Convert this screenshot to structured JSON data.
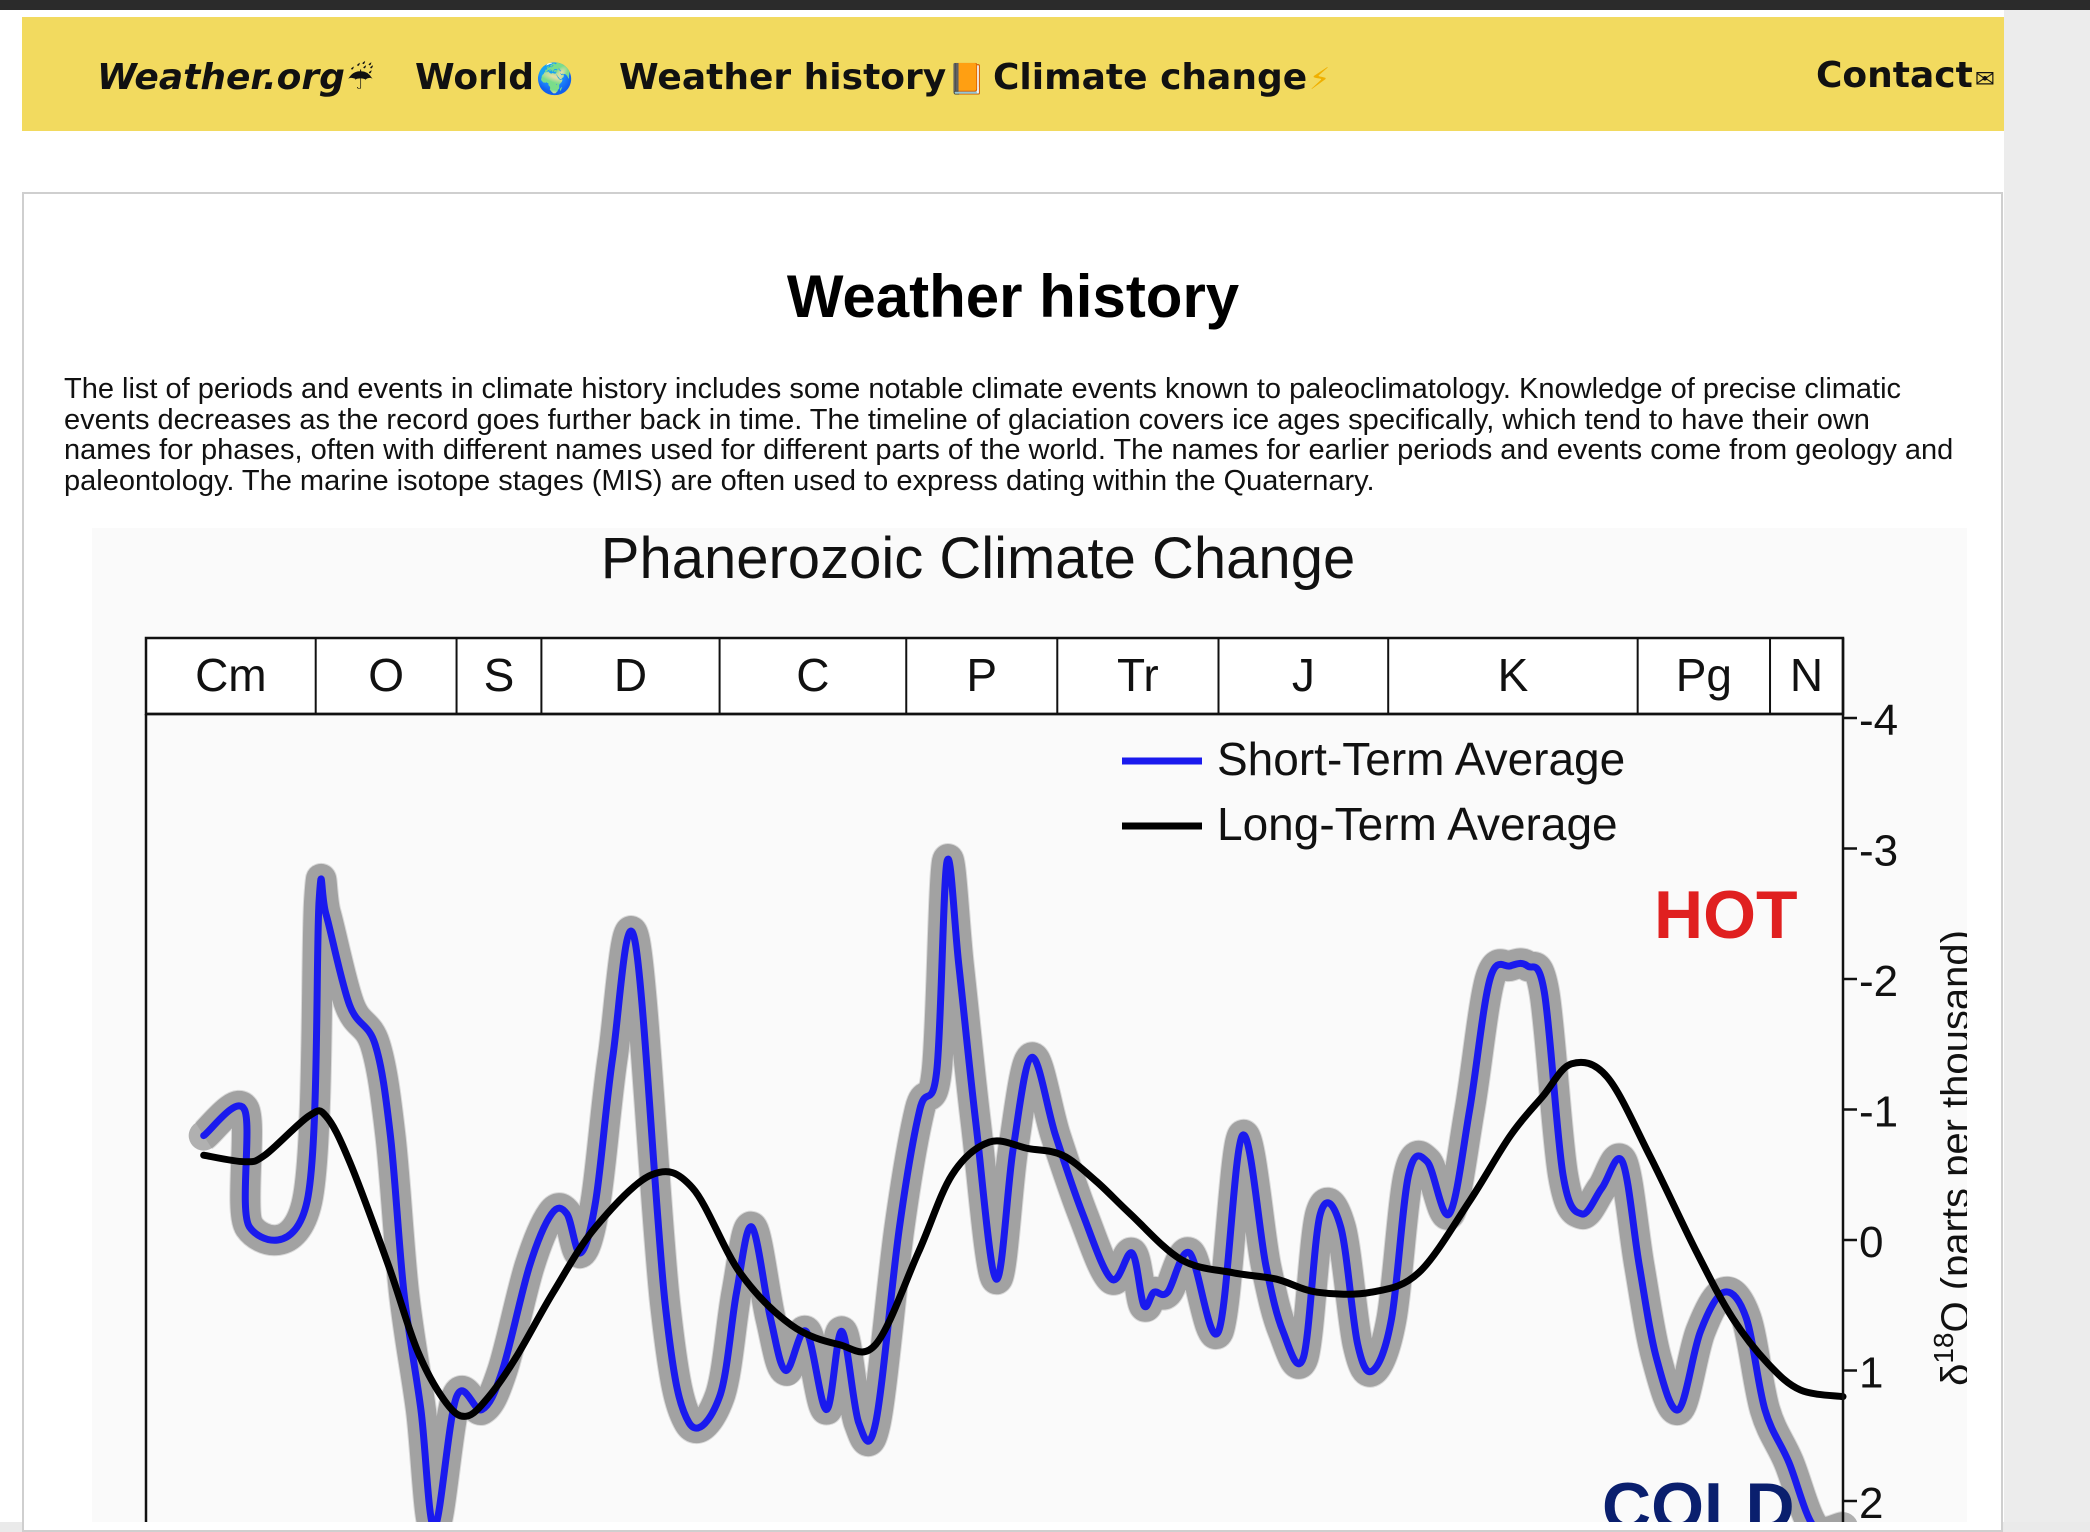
{
  "nav": {
    "brand": "Weather.org",
    "brand_emoji": "☔",
    "world": "World",
    "world_emoji": "🌍",
    "history": "Weather history",
    "history_emoji": "📙",
    "climate": "Climate change",
    "climate_emoji": "⚡",
    "contact": "Contact",
    "contact_emoji": "✉"
  },
  "main": {
    "title": "Weather history",
    "intro": "The list of periods and events in climate history includes some notable climate events known to paleoclimatology. Knowledge of precise climatic events decreases as the record goes further back in time. The timeline of glaciation covers ice ages specifically, which tend to have their own names for phases, often with different names used for different parts of the world. The names for earlier periods and events come from geology and paleontology. The marine isotope stages (MIS) are often used to express dating within the Quaternary."
  },
  "colors": {
    "nav_bg": "#f2da5f",
    "short_term": "#1a1aee",
    "long_term": "#000000",
    "hot": "#e02020",
    "cold": "#0a1f6e",
    "band": "#b0b0b0"
  },
  "chart_data": {
    "type": "line",
    "title": "Phanerozoic Climate Change",
    "ylabel": "δ18O (parts per thousand)",
    "ylabel_main": "δ",
    "ylabel_sup": "18",
    "ylabel_rest": "O (parts per thousand)",
    "ylim": [
      2,
      -4
    ],
    "yticks": [
      "-4",
      "-3",
      "-2",
      "-1",
      "0",
      "1",
      "2"
    ],
    "ytick_values": [
      -4,
      -3,
      -2,
      -1,
      0,
      1,
      2
    ],
    "periods": [
      {
        "label": "Cm",
        "start": 0,
        "end": 10
      },
      {
        "label": "O",
        "start": 10,
        "end": 18.3
      },
      {
        "label": "S",
        "start": 18.3,
        "end": 23.3
      },
      {
        "label": "D",
        "start": 23.3,
        "end": 33.8
      },
      {
        "label": "C",
        "start": 33.8,
        "end": 44.8
      },
      {
        "label": "P",
        "start": 44.8,
        "end": 53.7
      },
      {
        "label": "Tr",
        "start": 53.7,
        "end": 63.2
      },
      {
        "label": "J",
        "start": 63.2,
        "end": 73.2
      },
      {
        "label": "K",
        "start": 73.2,
        "end": 87.9
      },
      {
        "label": "Pg",
        "start": 87.9,
        "end": 95.7
      },
      {
        "label": "N",
        "start": 95.7,
        "end": 100
      }
    ],
    "annotations": {
      "hot": "HOT",
      "cold": "COLD"
    },
    "legend_position": "top-center",
    "series": [
      {
        "name": "Short-Term Average",
        "x": [
          3.4,
          5.8,
          6.1,
          9.5,
          10.2,
          10.6,
          12,
          13.5,
          14.4,
          15.2,
          16.2,
          17,
          18.3,
          19.8,
          21,
          22.6,
          23.9,
          24.8,
          25.6,
          26.5,
          27.5,
          28.8,
          30.6,
          32,
          33.8,
          34.8,
          35.7,
          36.8,
          37.7,
          38.9,
          40.1,
          41,
          42,
          43,
          44.4,
          45.6,
          46.6,
          47.2,
          47.9,
          48.9,
          50.1,
          51.1,
          52.2,
          53.6,
          55.2,
          56.9,
          58.1,
          58.8,
          59.4,
          60.2,
          61.5,
          63.2,
          64.6,
          66,
          67,
          68.2,
          69.2,
          70.4,
          71.4,
          72.3,
          73.4,
          74.4,
          75.5,
          76.8,
          78,
          79.2,
          80.4,
          81.4,
          82.4,
          83.5,
          84.6,
          85.8,
          87,
          88,
          89,
          90.3,
          91.6,
          93,
          94.3,
          95.4,
          96.8,
          98.3,
          100
        ],
        "values": [
          -0.8,
          -1,
          -0.1,
          -0.3,
          -2.6,
          -2.5,
          -1.8,
          -1.5,
          -0.8,
          0.4,
          1.3,
          2.2,
          1.2,
          1.3,
          1,
          0.2,
          -0.2,
          -0.2,
          0.1,
          -0.3,
          -1.4,
          -2.3,
          0.5,
          1.4,
          1.2,
          0.4,
          -0.1,
          0.6,
          1,
          0.7,
          1.3,
          0.7,
          1.4,
          1.4,
          -0.1,
          -1,
          -1.3,
          -2.9,
          -2.1,
          -0.9,
          0.3,
          -0.7,
          -1.4,
          -0.8,
          -0.2,
          0.3,
          0.1,
          0.5,
          0.4,
          0.4,
          0.1,
          0.7,
          -0.8,
          0.2,
          0.7,
          0.9,
          -0.2,
          -0.1,
          0.8,
          1,
          0.6,
          -0.5,
          -0.6,
          -0.2,
          -1,
          -2,
          -2.1,
          -2.1,
          -1.9,
          -0.5,
          -0.2,
          -0.4,
          -0.6,
          0.2,
          0.9,
          1.3,
          0.7,
          0.4,
          0.6,
          1.3,
          1.7,
          2.2,
          2.2
        ]
      },
      {
        "name": "Long-Term Average",
        "x": [
          3.4,
          5.8,
          7,
          9.6,
          10.6,
          12,
          14.3,
          16,
          17.7,
          18.9,
          20.2,
          21.8,
          24,
          26.5,
          29.8,
          32.2,
          35,
          38,
          40.8,
          43,
          45.5,
          47.5,
          49.7,
          52,
          54,
          56,
          58,
          61,
          64,
          66.6,
          69,
          72.2,
          75,
          78,
          80.4,
          82.3,
          84,
          86.1,
          88.6,
          91.4,
          93.5,
          95.6,
          97.5,
          100
        ],
        "values": [
          -0.65,
          -0.6,
          -0.65,
          -0.95,
          -0.95,
          -0.6,
          0.2,
          0.85,
          1.25,
          1.35,
          1.2,
          0.9,
          0.4,
          -0.1,
          -0.5,
          -0.4,
          0.25,
          0.65,
          0.8,
          0.8,
          0.1,
          -0.5,
          -0.75,
          -0.7,
          -0.65,
          -0.45,
          -0.2,
          0.15,
          0.25,
          0.3,
          0.4,
          0.4,
          0.25,
          -0.3,
          -0.8,
          -1.1,
          -1.35,
          -1.25,
          -0.65,
          0.1,
          0.6,
          0.95,
          1.15,
          1.2
        ]
      }
    ]
  }
}
